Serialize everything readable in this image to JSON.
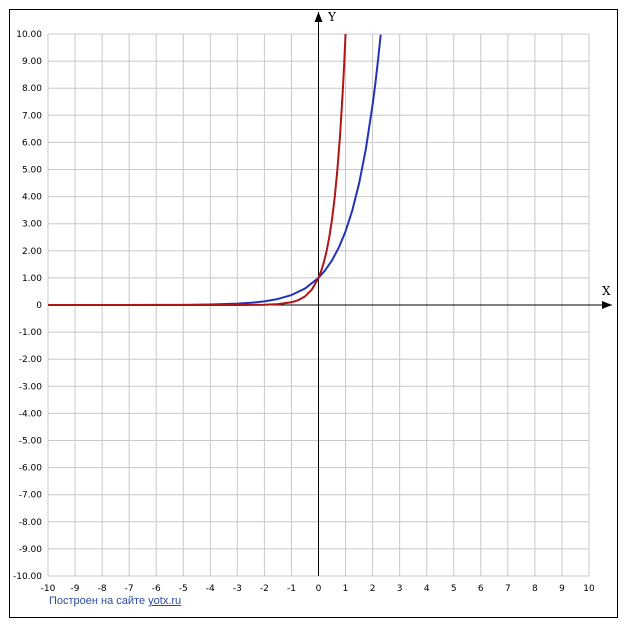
{
  "chart_data": {
    "type": "line",
    "title": "",
    "xlabel": "X",
    "ylabel": "Y",
    "xlim": [
      -10,
      10
    ],
    "ylim": [
      -10,
      10
    ],
    "grid": true,
    "x_ticks": [
      "-10",
      "-9",
      "-8",
      "-7",
      "-6",
      "-5",
      "-4",
      "-3",
      "-2",
      "-1",
      "0",
      "1",
      "2",
      "3",
      "4",
      "5",
      "6",
      "7",
      "8",
      "9",
      "10"
    ],
    "y_ticks": [
      "10.00",
      "9.00",
      "8.00",
      "7.00",
      "6.00",
      "5.00",
      "4.00",
      "3.00",
      "2.00",
      "1.00",
      "0",
      "-1.00",
      "-2.00",
      "-3.00",
      "-4.00",
      "-5.00",
      "-6.00",
      "-7.00",
      "-8.00",
      "-9.00",
      "-10.00"
    ],
    "series": [
      {
        "color": "#2233bb",
        "x": [
          -10,
          -8,
          -6,
          -5,
          -4,
          -3,
          -2.5,
          -2,
          -1.5,
          -1,
          -0.5,
          0,
          0.25,
          0.5,
          0.75,
          1,
          1.25,
          1.5,
          1.75,
          2,
          2.1,
          2.2,
          2.3
        ],
        "y": [
          5e-05,
          0.0003,
          0.0025,
          0.0067,
          0.018,
          0.05,
          0.082,
          0.135,
          0.223,
          0.368,
          0.607,
          1,
          1.284,
          1.649,
          2.117,
          2.718,
          3.49,
          4.482,
          5.755,
          7.389,
          8.166,
          9.025,
          9.974
        ]
      },
      {
        "color": "#b01515",
        "x": [
          -10,
          -5,
          -3,
          -2,
          -1.5,
          -1,
          -0.75,
          -0.5,
          -0.25,
          0,
          0.1,
          0.2,
          0.3,
          0.4,
          0.5,
          0.6,
          0.7,
          0.8,
          0.9,
          0.95,
          1
        ],
        "y": [
          0,
          1e-05,
          0.001,
          0.01,
          0.032,
          0.1,
          0.178,
          0.316,
          0.562,
          1,
          1.259,
          1.585,
          1.995,
          2.512,
          3.162,
          3.981,
          5.012,
          6.31,
          7.943,
          8.913,
          10
        ]
      }
    ]
  },
  "credit": {
    "prefix": "Построен на сайте",
    "link": "yotx.ru"
  }
}
